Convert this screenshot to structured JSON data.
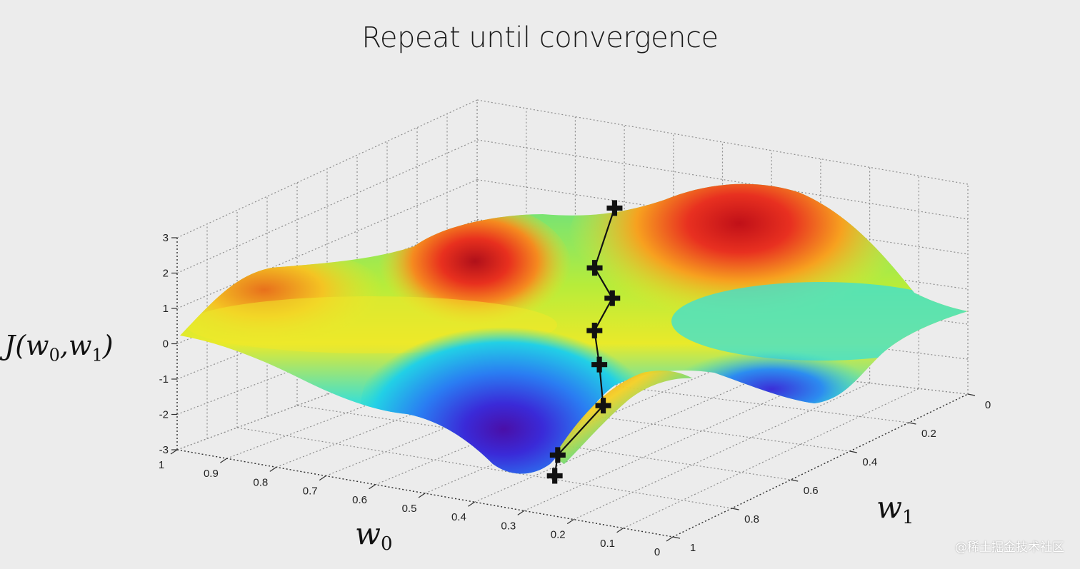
{
  "chart_data": {
    "type": "surface",
    "title": "Repeat until convergence",
    "xlabel": "w0",
    "ylabel": "w1",
    "zlabel": "J(w0,w1)",
    "x_ticks": [
      "1",
      "0.9",
      "0.8",
      "0.7",
      "0.6",
      "0.5",
      "0.4",
      "0.3",
      "0.2",
      "0.1",
      "0"
    ],
    "y_ticks": [
      "0",
      "0.2",
      "0.4",
      "0.6",
      "0.8",
      "1"
    ],
    "z_ticks": [
      "3",
      "2",
      "1",
      "0",
      "-1",
      "-2",
      "-3"
    ],
    "xlim": [
      1,
      0
    ],
    "ylim": [
      0,
      1
    ],
    "zlim": [
      -3,
      3
    ],
    "grid": true,
    "colormap": "jet",
    "descent_path": [
      {
        "w0": 0.55,
        "w1": 0.28,
        "J": 2.4
      },
      {
        "w0": 0.53,
        "w1": 0.38,
        "J": 1.1
      },
      {
        "w0": 0.47,
        "w1": 0.42,
        "J": 0.5
      },
      {
        "w0": 0.47,
        "w1": 0.48,
        "J": -0.2
      },
      {
        "w0": 0.43,
        "w1": 0.53,
        "J": -0.9
      },
      {
        "w0": 0.38,
        "w1": 0.6,
        "J": -1.7
      },
      {
        "w0": 0.4,
        "w1": 0.72,
        "J": -2.7
      },
      {
        "w0": 0.37,
        "w1": 0.78,
        "J": -3.0
      }
    ],
    "path_color": "#111111"
  },
  "axis_labels": {
    "x_main": "w",
    "x_sub": "0",
    "y_main": "w",
    "y_sub": "1",
    "z_pre": "J(w",
    "z_sub1": "0",
    "z_mid": ",w",
    "z_sub2": "1",
    "z_post": ")"
  },
  "watermark": "@稀土掘金技术社区"
}
